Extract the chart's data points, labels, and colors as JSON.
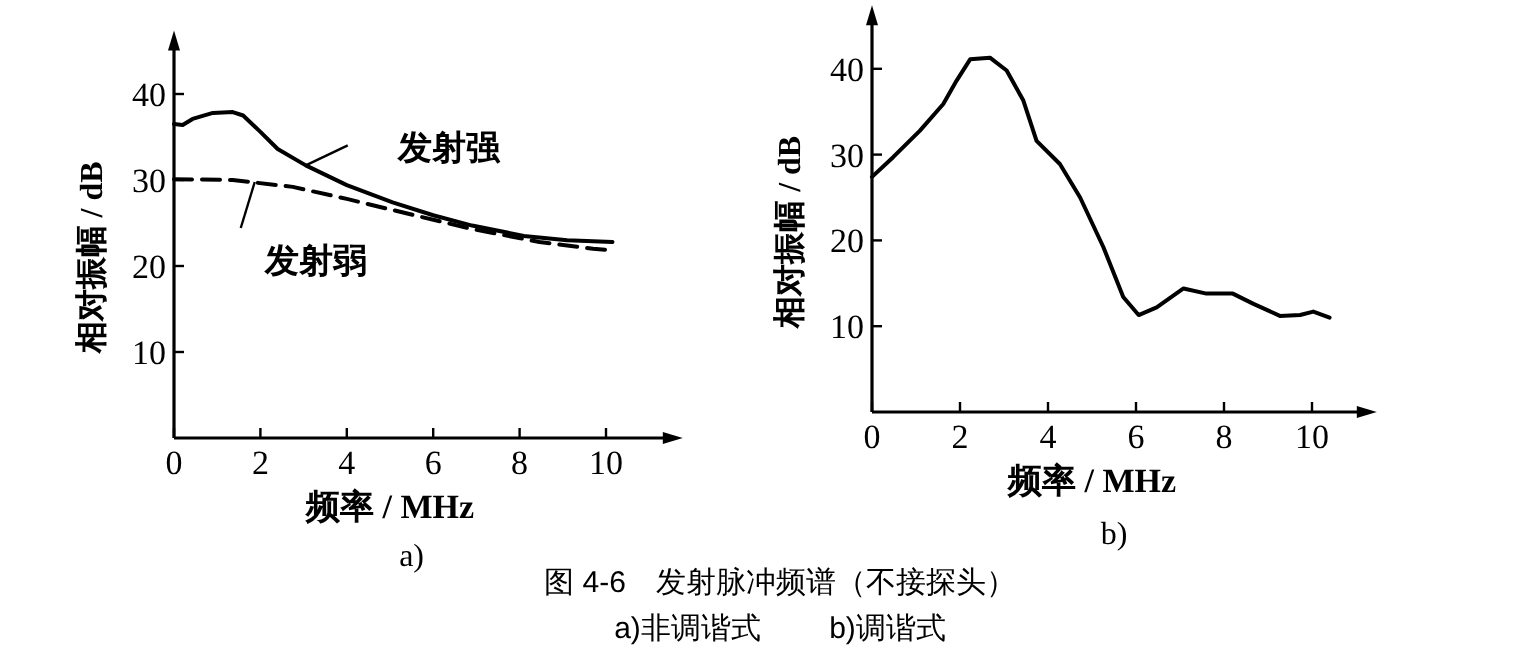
{
  "chart_data": [
    {
      "type": "line",
      "subtitle": "a)",
      "xlabel": "频率 / MHz",
      "ylabel": "相对振幅 / dB",
      "xlim": [
        0,
        11.5
      ],
      "ylim": [
        0,
        46
      ],
      "xticks": [
        0,
        2,
        4,
        6,
        8,
        10
      ],
      "yticks": [
        10,
        20,
        30,
        40
      ],
      "grid": false,
      "series": [
        {
          "name": "发射强",
          "color": "#000000",
          "line_style": "solid",
          "x": [
            0,
            0.2,
            0.43,
            0.9,
            1.36,
            1.6,
            2,
            2.4,
            3.05,
            4,
            5.06,
            6,
            6.9,
            8.1,
            9.1,
            10.15
          ],
          "values": [
            36.5,
            36.4,
            37.1,
            37.8,
            37.9,
            37.5,
            35.6,
            33.6,
            31.7,
            29.4,
            27.4,
            25.9,
            24.7,
            23.5,
            23.0,
            22.8
          ]
        },
        {
          "name": "发射弱",
          "color": "#000000",
          "line_style": "dashed",
          "x": [
            0,
            1.36,
            2.75,
            4,
            5.4,
            6.9,
            8.46,
            9.7,
            10.15
          ],
          "values": [
            30.1,
            30.0,
            29.2,
            27.8,
            26.1,
            24.3,
            22.8,
            22.0,
            21.8
          ]
        }
      ],
      "annotations": [
        "图 4-6　发射脉冲频谱（不接探头）",
        "a)非调谐式　　 b)调谐式"
      ]
    },
    {
      "type": "line",
      "subtitle": "b)",
      "xlabel": "频率 / MHz",
      "ylabel": "相对振幅 / dB",
      "xlim": [
        0,
        11.2
      ],
      "ylim": [
        0,
        46
      ],
      "xticks": [
        0,
        2,
        4,
        6,
        8,
        10
      ],
      "yticks": [
        10,
        20,
        30,
        40
      ],
      "grid": false,
      "series": [
        {
          "color": "#000000",
          "line_style": "solid",
          "x": [
            0,
            0.48,
            1.09,
            1.62,
            1.92,
            2.23,
            2.68,
            3.06,
            3.44,
            3.74,
            4.27,
            4.73,
            5.26,
            5.71,
            6.06,
            6.47,
            7.08,
            7.6,
            8.2,
            8.67,
            9.27,
            9.73,
            10.03,
            10.4
          ],
          "values": [
            27.4,
            29.7,
            32.8,
            35.9,
            38.6,
            41.1,
            41.3,
            39.8,
            36.3,
            31.6,
            28.9,
            25.0,
            19.2,
            13.4,
            11.3,
            12.2,
            14.4,
            13.8,
            13.8,
            12.6,
            11.2,
            11.3,
            11.7,
            11.0
          ]
        }
      ]
    }
  ]
}
